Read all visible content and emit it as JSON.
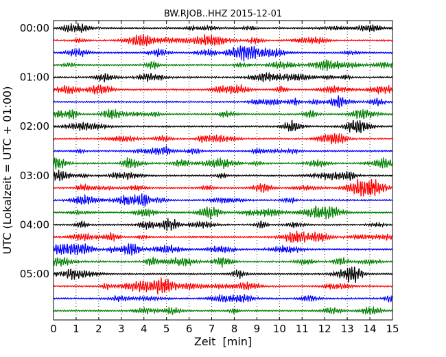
{
  "chart_data": {
    "type": "line",
    "title": "BW.RJOB..HHZ 2015-12-01",
    "xlabel": "Zeit  [min]",
    "ylabel": "UTC (Lokalzeit = UTC + 01:00)",
    "xlim": [
      0,
      15
    ],
    "x_ticks": [
      "0",
      "1",
      "2",
      "3",
      "4",
      "5",
      "6",
      "7",
      "8",
      "9",
      "10",
      "11",
      "12",
      "13",
      "14",
      "15"
    ],
    "y_ticks": [
      "00:00",
      "01:00",
      "02:00",
      "03:00",
      "04:00",
      "05:00"
    ],
    "trace_interval_min": 15,
    "trace_count": 24,
    "color_cycle": [
      "#000000",
      "#ff0000",
      "#0000ff",
      "#008000"
    ],
    "grid": "vertical dotted"
  }
}
